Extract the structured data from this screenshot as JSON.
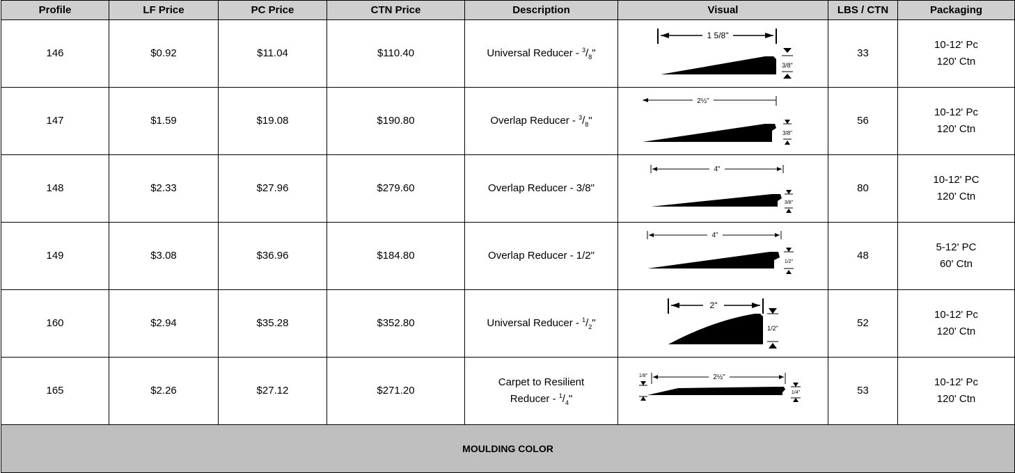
{
  "headers": [
    "Profile",
    "LF Price",
    "PC Price",
    "CTN Price",
    "Description",
    "Visual",
    "LBS / CTN",
    "Packaging"
  ],
  "rows": [
    {
      "profile": "146",
      "lf": "$0.92",
      "pc": "$11.04",
      "ctn": "$110.40",
      "desc_main": "Universal Reducer - ",
      "desc_sup": "3",
      "desc_sub": "8",
      "desc_tail": "\"",
      "lbs": "33",
      "pack1": "10-12' Pc",
      "pack2": "120' Ctn",
      "visual": {
        "width_label": "1 5/8\"",
        "height_label": "3/8\"",
        "icon": "universal-reducer-profile-icon"
      }
    },
    {
      "profile": "147",
      "lf": "$1.59",
      "pc": "$19.08",
      "ctn": "$190.80",
      "desc_main": "Overlap Reducer - ",
      "desc_sup": "3",
      "desc_sub": "8",
      "desc_tail": "\"",
      "lbs": "56",
      "pack1": "10-12' Pc",
      "pack2": "120' Ctn",
      "visual": {
        "width_label": "2½\"",
        "height_label": "3/8\"",
        "icon": "overlap-reducer-profile-icon"
      }
    },
    {
      "profile": "148",
      "lf": "$2.33",
      "pc": "$27.96",
      "ctn": "$279.60",
      "desc_main": "Overlap Reducer - 3/8\"",
      "desc_sup": "",
      "desc_sub": "",
      "desc_tail": "",
      "lbs": "80",
      "pack1": "10-12' PC",
      "pack2": "120' Ctn",
      "visual": {
        "width_label": "4\"",
        "height_label": "3/8\"",
        "icon": "overlap-reducer-profile-icon"
      }
    },
    {
      "profile": "149",
      "lf": "$3.08",
      "pc": "$36.96",
      "ctn": "$184.80",
      "desc_main": "Overlap Reducer - 1/2\"",
      "desc_sup": "",
      "desc_sub": "",
      "desc_tail": "",
      "lbs": "48",
      "pack1": "5-12' PC",
      "pack2": "60' Ctn",
      "visual": {
        "width_label": "4\"",
        "height_label": "1/2\"",
        "icon": "overlap-reducer-profile-icon"
      }
    },
    {
      "profile": "160",
      "lf": "$2.94",
      "pc": "$35.28",
      "ctn": "$352.80",
      "desc_main": "Universal Reducer - ",
      "desc_sup": "1",
      "desc_sub": "2",
      "desc_tail": "\"",
      "lbs": "52",
      "pack1": "10-12' Pc",
      "pack2": "120' Ctn",
      "visual": {
        "width_label": "2\"",
        "height_label": "1/2\"",
        "icon": "universal-reducer-profile-icon"
      }
    },
    {
      "profile": "165",
      "lf": "$2.26",
      "pc": "$27.12",
      "ctn": "$271.20",
      "desc_main": "Carpet to Resilient",
      "desc_line2": "Reducer - ",
      "desc_sup": "1",
      "desc_sub": "4",
      "desc_tail": "\"",
      "lbs": "53",
      "pack1": "10-12' Pc",
      "pack2": "120' Ctn",
      "visual": {
        "width_label": "2½\"",
        "height_label": "1/4\"",
        "left_label": "1/8\"",
        "icon": "carpet-reducer-profile-icon"
      }
    }
  ],
  "footer": "MOULDING COLOR"
}
